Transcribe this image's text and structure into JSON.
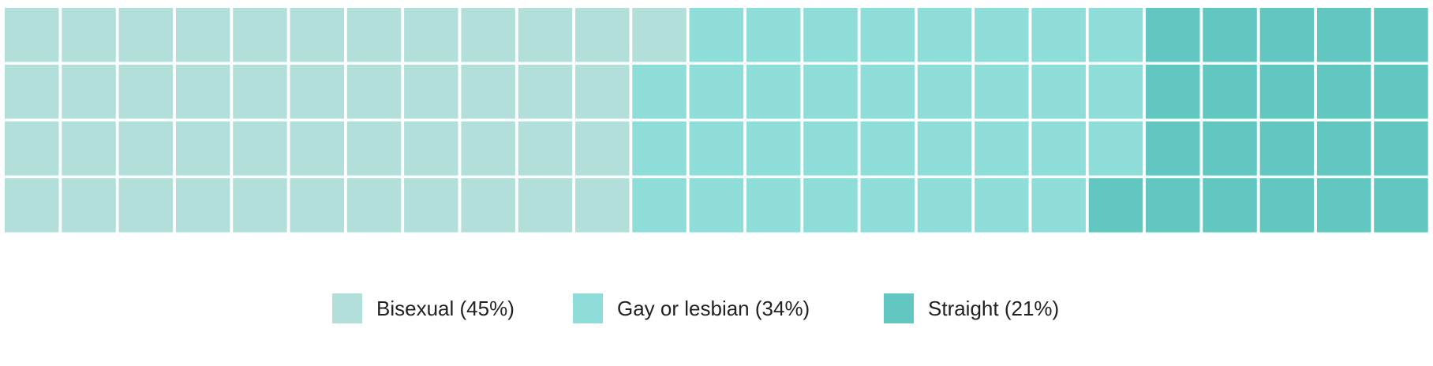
{
  "chart_data": {
    "type": "waffle",
    "rows": 4,
    "columns": 25,
    "fill_order": "column-major",
    "categories": [
      {
        "name": "Bisexual",
        "label": "Bisexual (45%)",
        "percent": 45,
        "squares": 45,
        "color": "#b3dfdb"
      },
      {
        "name": "Gay or lesbian",
        "label": "Gay or lesbian (34%)",
        "percent": 34,
        "squares": 34,
        "color": "#8fddd8"
      },
      {
        "name": "Straight",
        "label": "Straight (21%)",
        "percent": 21,
        "squares": 21,
        "color": "#61c7c0"
      }
    ],
    "legend_placement": "bottom-center"
  }
}
